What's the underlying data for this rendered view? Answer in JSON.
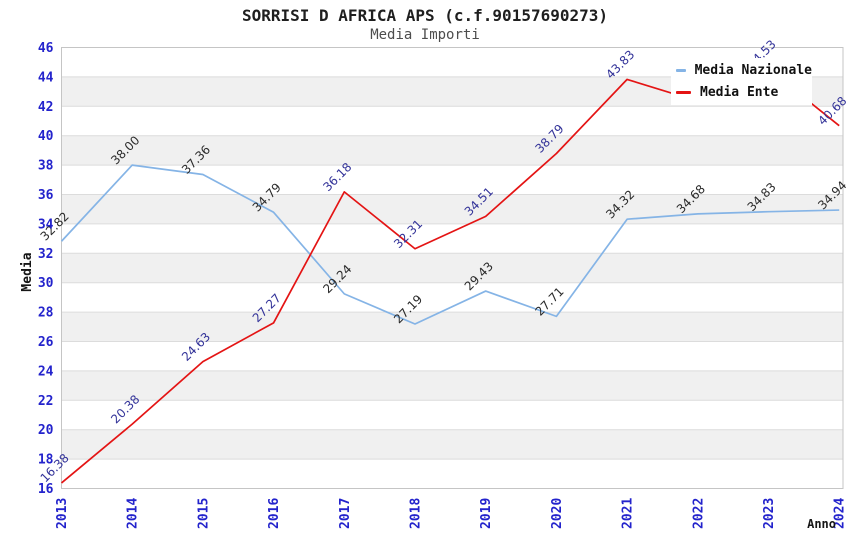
{
  "chart_data": {
    "type": "line",
    "title": "SORRISI D AFRICA APS (c.f.90157690273)",
    "subtitle": "Media Importi",
    "xlabel": "Anno",
    "ylabel": "Media",
    "categories": [
      "2013",
      "2014",
      "2015",
      "2016",
      "2017",
      "2018",
      "2019",
      "2020",
      "2021",
      "2022",
      "2023",
      "2024"
    ],
    "ylim": [
      16,
      46
    ],
    "y_ticks": [
      16,
      18,
      20,
      22,
      24,
      26,
      28,
      30,
      32,
      34,
      36,
      38,
      40,
      42,
      44,
      46
    ],
    "grid": "horizontal gridlines with alternating gray bands every 2 units",
    "legend_position": "top-right-overlapping-plot",
    "tick_label_color": "#2323cc",
    "series": [
      {
        "name": "Media Nazionale",
        "color": "#85b4e6",
        "label_color": "#2b2b2b",
        "values": [
          32.82,
          38.0,
          37.36,
          34.79,
          29.24,
          27.19,
          29.43,
          27.71,
          34.32,
          34.68,
          34.83,
          34.94
        ],
        "labels": [
          "32.82",
          "38.00",
          "37.36",
          "34.79",
          "29.24",
          "27.19",
          "29.43",
          "27.71",
          "34.32",
          "34.68",
          "34.83",
          "34.94"
        ]
      },
      {
        "name": "Media Ente",
        "color": "#e41414",
        "label_color": "#333399",
        "values": [
          16.38,
          20.38,
          24.63,
          27.27,
          36.18,
          32.31,
          34.51,
          38.79,
          43.83,
          42.35,
          44.53,
          40.68
        ],
        "labels": [
          "16.38",
          "20.38",
          "24.63",
          "27.27",
          "36.18",
          "32.31",
          "34.51",
          "38.79",
          "43.83",
          "",
          "44.53",
          "40.68"
        ],
        "note": "2022 point and its label are hidden behind the legend box"
      }
    ]
  }
}
